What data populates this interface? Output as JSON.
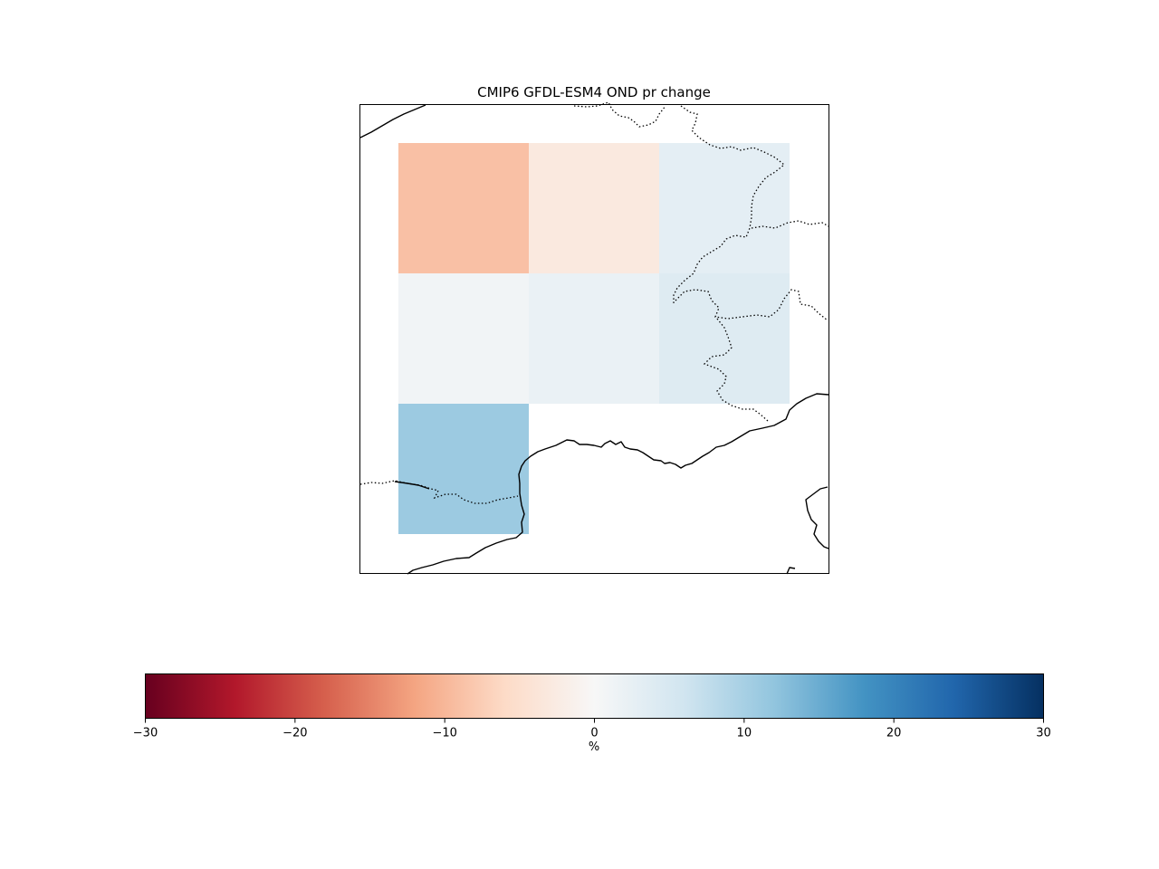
{
  "title": "CMIP6 GFDL-ESM4 OND pr change",
  "colormap": {
    "name": "RdBu",
    "stops": [
      "#67001f",
      "#b2182b",
      "#d6604d",
      "#f4a582",
      "#fddbc7",
      "#f7f7f7",
      "#d1e5f0",
      "#92c5de",
      "#4393c3",
      "#2166ac",
      "#053061"
    ]
  },
  "colorbar": {
    "label": "%",
    "vmin": -30,
    "vmax": 30,
    "ticks": [
      -30,
      -20,
      -10,
      0,
      10,
      20,
      30
    ],
    "tick_labels": [
      "−30",
      "−20",
      "−10",
      "0",
      "10",
      "20",
      "30"
    ]
  },
  "chart_data": {
    "type": "heatmap",
    "title": "CMIP6 GFDL-ESM4 OND pr change",
    "rows": 3,
    "cols": 3,
    "values": [
      [
        -9,
        -3,
        3
      ],
      [
        1,
        2,
        4
      ],
      [
        11,
        null,
        null
      ]
    ],
    "units": "%",
    "vmin": -30,
    "vmax": 30,
    "grid": false
  },
  "map": {
    "features": [
      "coastline",
      "borders"
    ]
  }
}
